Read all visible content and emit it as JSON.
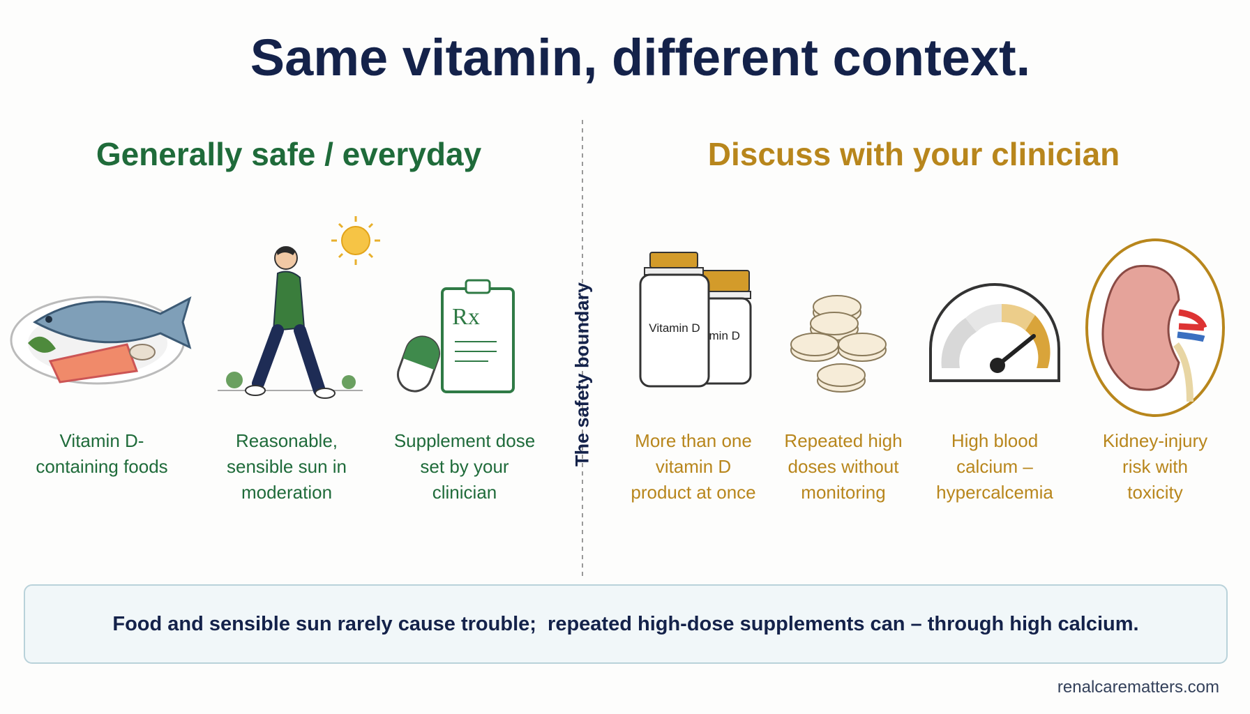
{
  "title": "Same vitamin, different context.",
  "left": {
    "heading": "Generally safe / everyday",
    "items": [
      {
        "label": "Vitamin D-containing foods"
      },
      {
        "label": "Reasonable, sensible sun in moderation"
      },
      {
        "label": "Supplement dose set by your clinician",
        "icon_text": "Rx"
      }
    ]
  },
  "boundary": "The safety boundary",
  "right": {
    "heading": "Discuss with your clinician",
    "items": [
      {
        "label": "More than one vitamin D product at once",
        "icon_text": [
          "Vitamin D",
          "amin D"
        ]
      },
      {
        "label": "Repeated high doses without monitoring"
      },
      {
        "label": "High blood calcium – hypercalcemia"
      },
      {
        "label": "Kidney-injury risk with toxicity"
      }
    ]
  },
  "note": "Food and sensible sun rarely cause trouble;  repeated high-dose supplements can – through high calcium.",
  "source": "renalcarematters.com"
}
